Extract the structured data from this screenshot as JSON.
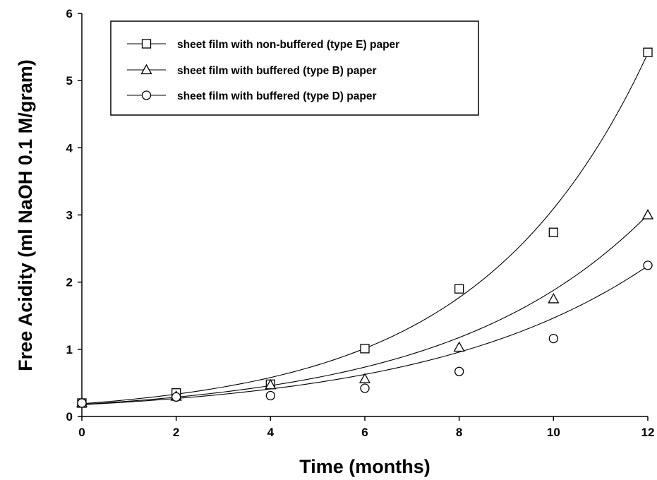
{
  "chart_data": {
    "type": "scatter",
    "xlabel": "Time (months)",
    "ylabel": "Free Acidity (ml NaOH 0.1 M/gram)",
    "xlim": [
      0,
      12
    ],
    "ylim": [
      0,
      6
    ],
    "xticks": [
      0,
      2,
      4,
      6,
      8,
      10,
      12
    ],
    "yticks": [
      0,
      1,
      2,
      3,
      4,
      5,
      6
    ],
    "legend_position": "top-left",
    "grid": false,
    "series": [
      {
        "name": "sheet film with non-buffered (type E) paper",
        "marker": "square",
        "x": [
          0,
          2,
          4,
          6,
          8,
          10,
          12
        ],
        "y": [
          0.2,
          0.35,
          0.48,
          1.01,
          1.9,
          2.74,
          5.42
        ],
        "fit": {
          "type": "exponential",
          "a": 0.19,
          "b": 0.279
        }
      },
      {
        "name": "sheet film with buffered (type B) paper",
        "marker": "triangle",
        "x": [
          0,
          2,
          4,
          6,
          8,
          10,
          12
        ],
        "y": [
          0.2,
          0.3,
          0.47,
          0.56,
          1.03,
          1.75,
          3.0
        ],
        "fit": {
          "type": "exponential",
          "a": 0.18,
          "b": 0.2345
        }
      },
      {
        "name": "sheet film with buffered (type D) paper",
        "marker": "circle",
        "x": [
          0,
          2,
          4,
          6,
          8,
          10,
          12
        ],
        "y": [
          0.2,
          0.29,
          0.31,
          0.42,
          0.67,
          1.16,
          2.25
        ],
        "fit": {
          "type": "exponential",
          "a": 0.175,
          "b": 0.2125
        }
      }
    ]
  }
}
